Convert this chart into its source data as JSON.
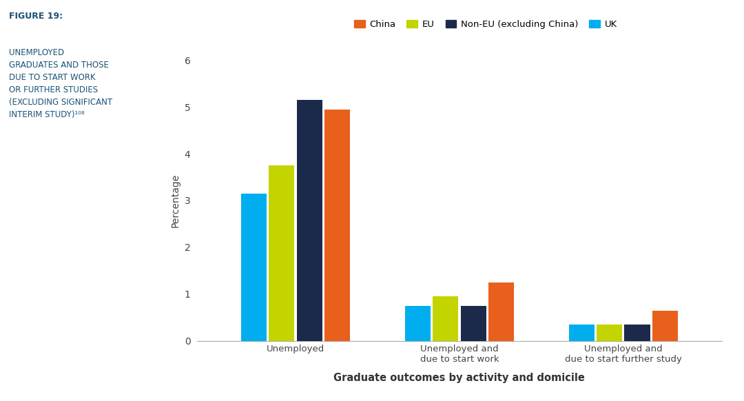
{
  "categories": [
    "Unemployed",
    "Unemployed and\ndue to start work",
    "Unemployed and\ndue to start further study"
  ],
  "series": {
    "UK": [
      3.15,
      0.75,
      0.35
    ],
    "EU": [
      3.75,
      0.95,
      0.35
    ],
    "Non-EU (excluding China)": [
      5.15,
      0.75,
      0.35
    ],
    "China": [
      4.95,
      1.25,
      0.65
    ]
  },
  "bar_order": [
    "UK",
    "EU",
    "Non-EU (excluding China)",
    "China"
  ],
  "colors": {
    "China": "#E8601C",
    "EU": "#C3D400",
    "Non-EU (excluding China)": "#1B2A4A",
    "UK": "#00AEEF"
  },
  "legend_order": [
    "China",
    "EU",
    "Non-EU (excluding China)",
    "UK"
  ],
  "ylabel": "Percentage",
  "xlabel": "Graduate outcomes by activity and domicile",
  "ylim": [
    0,
    6
  ],
  "yticks": [
    0,
    1,
    2,
    3,
    4,
    5,
    6
  ],
  "figure_title_line1": "FIGURE 19:",
  "figure_title_body": "UNEMPLOYED\nGRADUATES AND THOSE\nDUE TO START WORK\nOR FURTHER STUDIES\n(EXCLUDING SIGNIFICANT\nINTERIM STUDY)¹⁰⁸",
  "background_color": "#ffffff",
  "bar_width": 0.17,
  "title_color": "#1a5276",
  "axis_color": "#444444"
}
